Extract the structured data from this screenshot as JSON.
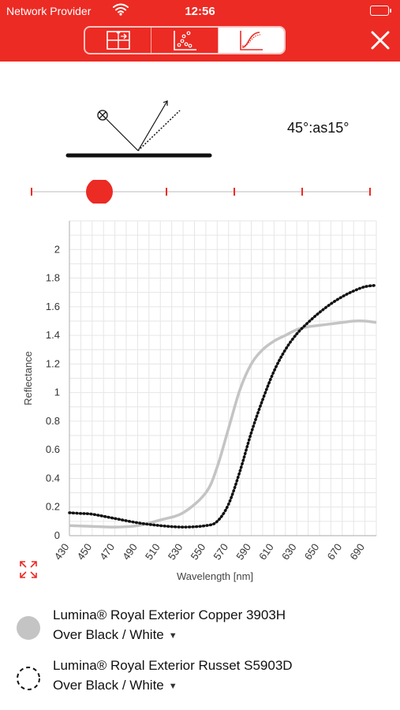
{
  "status_bar": {
    "carrier": "Network Provider",
    "time": "12:56"
  },
  "toolbar": {
    "segments": [
      {
        "icon": "grid-cross-icon",
        "active": false
      },
      {
        "icon": "scatter-chart-icon",
        "active": false
      },
      {
        "icon": "curve-chart-icon",
        "active": true
      }
    ],
    "close_icon": "close-icon"
  },
  "geometry": {
    "angle_label": "45°:as15°",
    "slider_selected_index": 1,
    "slider_stop_count": 6
  },
  "colors": {
    "accent": "#ec2b24",
    "series_solid": "#c4c4c4",
    "series_dotted": "#111111",
    "grid": "#e6e6e6"
  },
  "chart_data": {
    "type": "line",
    "xlabel": "Wavelength [nm]",
    "ylabel": "Reflectance",
    "xlim": [
      430,
      700
    ],
    "ylim": [
      0,
      2.2
    ],
    "xticks": [
      430,
      450,
      470,
      490,
      510,
      530,
      550,
      570,
      590,
      610,
      630,
      650,
      670,
      690
    ],
    "yticks": [
      0,
      0.2,
      0.4,
      0.6,
      0.8,
      1,
      1.2,
      1.4,
      1.6,
      1.8,
      2
    ],
    "ytick_labels": [
      "0",
      "0.2",
      "0.4",
      "0.6",
      "0.8",
      "1",
      "1.2",
      "1.4",
      "1.6",
      "1.8",
      "2"
    ],
    "grid": true,
    "series": [
      {
        "style": "solid",
        "x": [
          430,
          450,
          470,
          490,
          510,
          530,
          550,
          560,
          570,
          580,
          590,
          600,
          610,
          620,
          630,
          640,
          650,
          660,
          670,
          680,
          690,
          700
        ],
        "y": [
          0.07,
          0.065,
          0.06,
          0.07,
          0.11,
          0.16,
          0.3,
          0.48,
          0.75,
          1.02,
          1.2,
          1.3,
          1.36,
          1.4,
          1.44,
          1.46,
          1.47,
          1.48,
          1.49,
          1.5,
          1.5,
          1.49
        ]
      },
      {
        "style": "dotted",
        "x": [
          430,
          440,
          450,
          470,
          490,
          510,
          530,
          550,
          560,
          570,
          580,
          590,
          600,
          610,
          620,
          630,
          640,
          650,
          660,
          670,
          680,
          690,
          700
        ],
        "y": [
          0.16,
          0.155,
          0.15,
          0.12,
          0.09,
          0.07,
          0.06,
          0.07,
          0.1,
          0.22,
          0.45,
          0.72,
          0.95,
          1.15,
          1.3,
          1.41,
          1.49,
          1.56,
          1.62,
          1.67,
          1.71,
          1.74,
          1.75
        ]
      }
    ]
  },
  "legend": [
    {
      "line1": "Lumina® Royal Exterior Copper 3903H",
      "line2": "Over Black / White",
      "swatch": "solid"
    },
    {
      "line1": "Lumina® Royal Exterior Russet S5903D",
      "line2": "Over Black / White",
      "swatch": "dashed"
    }
  ]
}
